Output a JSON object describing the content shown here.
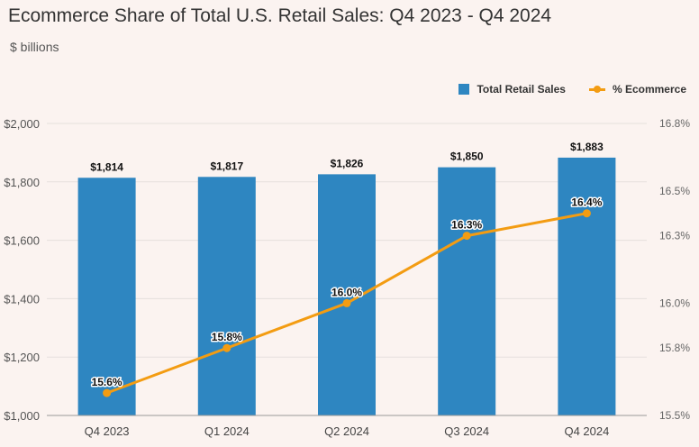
{
  "chart_data": {
    "type": "bar",
    "title": "Ecommerce Share of Total U.S. Retail Sales: Q4 2023 - Q4 2024",
    "subtitle": "$ billions",
    "categories": [
      "Q4 2023",
      "Q1 2024",
      "Q2 2024",
      "Q3 2024",
      "Q4 2024"
    ],
    "series": [
      {
        "name": "Total Retail Sales",
        "type": "bar",
        "axis": "left",
        "values": [
          1814,
          1817,
          1826,
          1850,
          1883
        ],
        "labels": [
          "$1,814",
          "$1,817",
          "$1,826",
          "$1,850",
          "$1,883"
        ]
      },
      {
        "name": "% Ecommerce",
        "type": "line",
        "axis": "right",
        "values": [
          15.6,
          15.8,
          16.0,
          16.3,
          16.4
        ],
        "labels": [
          "15.6%",
          "15.8%",
          "16.0%",
          "16.3%",
          "16.4%"
        ]
      }
    ],
    "ylim": [
      1000,
      2000
    ],
    "yticks": [
      1000,
      1200,
      1400,
      1600,
      1800,
      2000
    ],
    "ytick_labels": [
      "$1,000",
      "$1,200",
      "$1,400",
      "$1,600",
      "$1,800",
      "$2,000"
    ],
    "y2lim": [
      15.5,
      16.8
    ],
    "y2ticks": [
      15.5,
      15.8,
      16.0,
      16.3,
      16.5,
      16.8
    ],
    "y2tick_labels": [
      "15.5%",
      "15.8%",
      "16.0%",
      "16.3%",
      "16.5%",
      "16.8%"
    ],
    "legend": "top-right",
    "grid": true
  },
  "colors": {
    "bar": "#2e86c1",
    "line": "#f39c12",
    "grid": "#e6e0dd",
    "axis": "#999999"
  }
}
